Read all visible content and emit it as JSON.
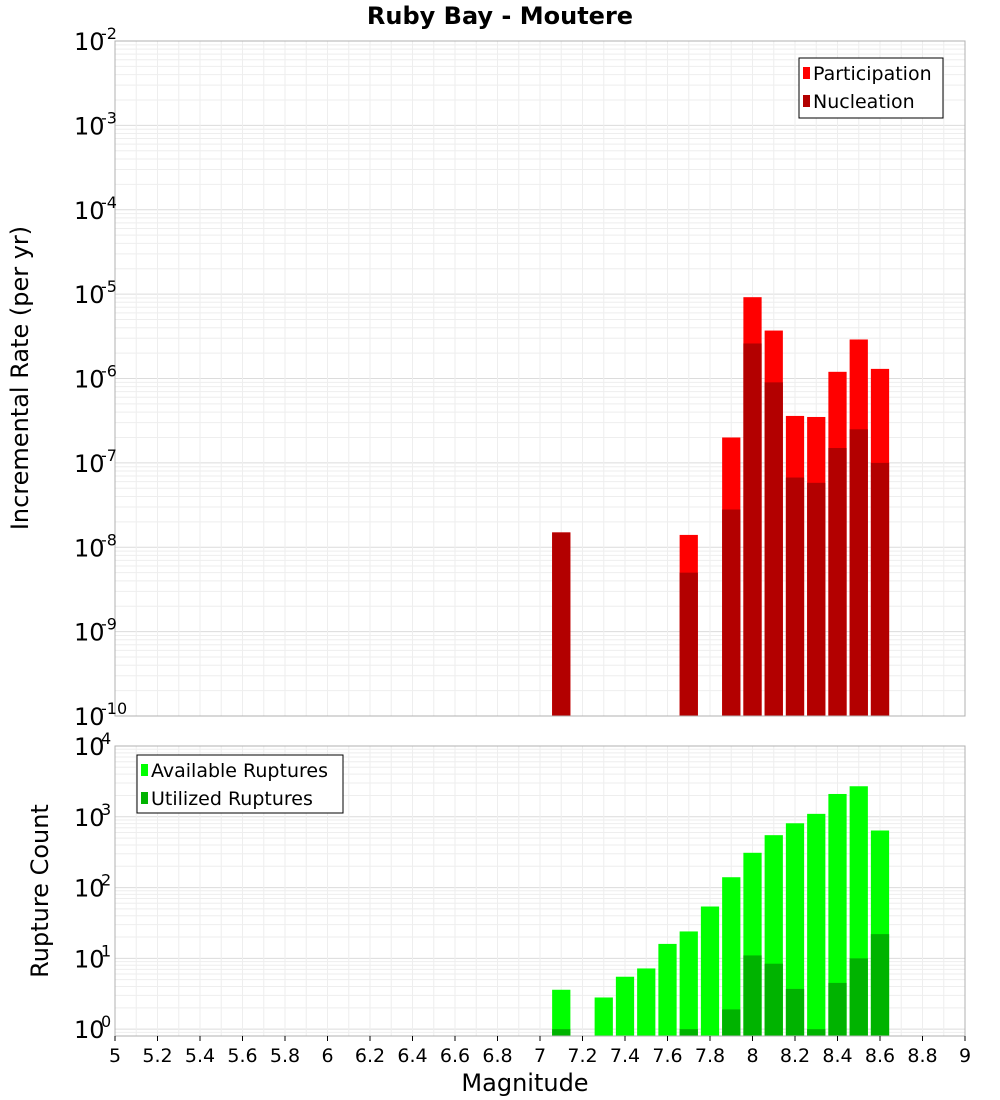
{
  "title": "Ruby Bay - Moutere",
  "chart_data": [
    {
      "type": "bar",
      "ylabel": "Incremental Rate (per yr)",
      "yscale": "log",
      "ylim": [
        1e-10,
        0.01
      ],
      "ytick_labels": [
        {
          "base": "10",
          "exp": "-10"
        },
        {
          "base": "10",
          "exp": "-9"
        },
        {
          "base": "10",
          "exp": "-8"
        },
        {
          "base": "10",
          "exp": "-7"
        },
        {
          "base": "10",
          "exp": "-6"
        },
        {
          "base": "10",
          "exp": "-5"
        },
        {
          "base": "10",
          "exp": "-4"
        },
        {
          "base": "10",
          "exp": "-3"
        },
        {
          "base": "10",
          "exp": "-2"
        }
      ],
      "grid": true,
      "legend_position": "top-right",
      "series": [
        {
          "name": "Participation",
          "color": "#ff0000",
          "x": [
            7.1,
            7.7,
            7.9,
            8.0,
            8.1,
            8.2,
            8.3,
            8.4,
            8.5,
            8.6
          ],
          "values": [
            1.5e-08,
            1.4e-08,
            2e-07,
            9.2e-06,
            3.7e-06,
            3.6e-07,
            3.5e-07,
            1.2e-06,
            2.9e-06,
            1.3e-06
          ]
        },
        {
          "name": "Nucleation",
          "color": "#b30000",
          "x": [
            7.1,
            7.7,
            7.9,
            8.0,
            8.1,
            8.2,
            8.3,
            8.4,
            8.5,
            8.6
          ],
          "values": [
            1.5e-08,
            5e-09,
            2.8e-08,
            2.6e-06,
            9e-07,
            6.7e-08,
            5.8e-08,
            1.5e-07,
            2.5e-07,
            1e-07
          ]
        }
      ]
    },
    {
      "type": "bar",
      "ylabel": "Rupture Count",
      "xlabel": "Magnitude",
      "yscale": "log",
      "ylim": [
        0.8,
        10000
      ],
      "ytick_labels": [
        {
          "base": "10",
          "exp": "0"
        },
        {
          "base": "10",
          "exp": "1"
        },
        {
          "base": "10",
          "exp": "2"
        },
        {
          "base": "10",
          "exp": "3"
        },
        {
          "base": "10",
          "exp": "4"
        }
      ],
      "xlim": [
        5,
        9
      ],
      "xticks": [
        "5",
        "5.2",
        "5.4",
        "5.6",
        "5.8",
        "6",
        "6.2",
        "6.4",
        "6.6",
        "6.8",
        "7",
        "7.2",
        "7.4",
        "7.6",
        "7.8",
        "8",
        "8.2",
        "8.4",
        "8.6",
        "8.8",
        "9"
      ],
      "grid": true,
      "legend_position": "top-left",
      "series": [
        {
          "name": "Available Ruptures",
          "color": "#00ff00",
          "x": [
            7.1,
            7.3,
            7.4,
            7.5,
            7.6,
            7.7,
            7.8,
            7.9,
            8.0,
            8.1,
            8.2,
            8.3,
            8.4,
            8.5,
            8.6
          ],
          "values": [
            3.6,
            2.8,
            5.5,
            7.2,
            16,
            24,
            54,
            140,
            310,
            550,
            810,
            1100,
            2100,
            2700,
            640
          ]
        },
        {
          "name": "Utilized Ruptures",
          "color": "#00b300",
          "x": [
            7.1,
            7.7,
            7.9,
            8.0,
            8.1,
            8.2,
            8.3,
            8.4,
            8.5,
            8.6
          ],
          "values": [
            1,
            1,
            1.9,
            11,
            8.4,
            3.7,
            1,
            4.5,
            10,
            22
          ]
        }
      ]
    }
  ]
}
